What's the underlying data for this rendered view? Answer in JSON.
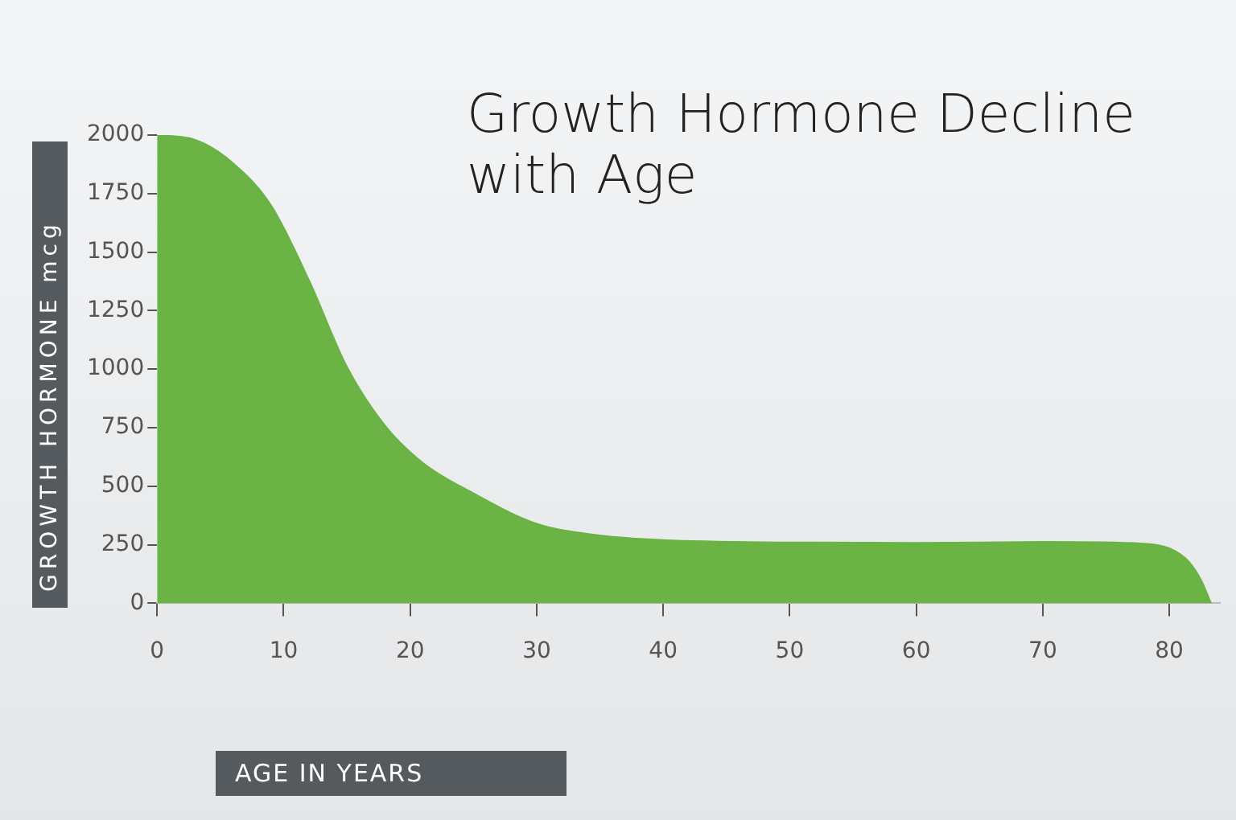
{
  "chart_data": {
    "type": "area",
    "title": "Growth Hormone Decline with Age",
    "xlabel": "AGE IN YEARS",
    "ylabel": "GROWTH HORMONE mcg",
    "x": [
      0,
      3,
      6,
      9,
      12,
      15,
      18,
      21,
      25,
      30,
      35,
      40,
      50,
      60,
      70,
      78,
      80,
      81.5,
      82.5,
      83.3
    ],
    "series": [
      {
        "color": "#6ab344",
        "values": [
          2000,
          1980,
          1880,
          1700,
          1380,
          1010,
          760,
          600,
          470,
          340,
          290,
          270,
          260,
          258,
          262,
          255,
          235,
          180,
          100,
          0
        ]
      }
    ],
    "xlim": [
      0,
      84
    ],
    "xticks": [
      0,
      10,
      20,
      30,
      40,
      50,
      60,
      70,
      80
    ],
    "ylim": [
      0,
      2000
    ],
    "yticks": [
      0,
      250,
      500,
      750,
      1000,
      1250,
      1500,
      1750,
      2000
    ],
    "grid": false,
    "legend": false,
    "marker": "none"
  }
}
